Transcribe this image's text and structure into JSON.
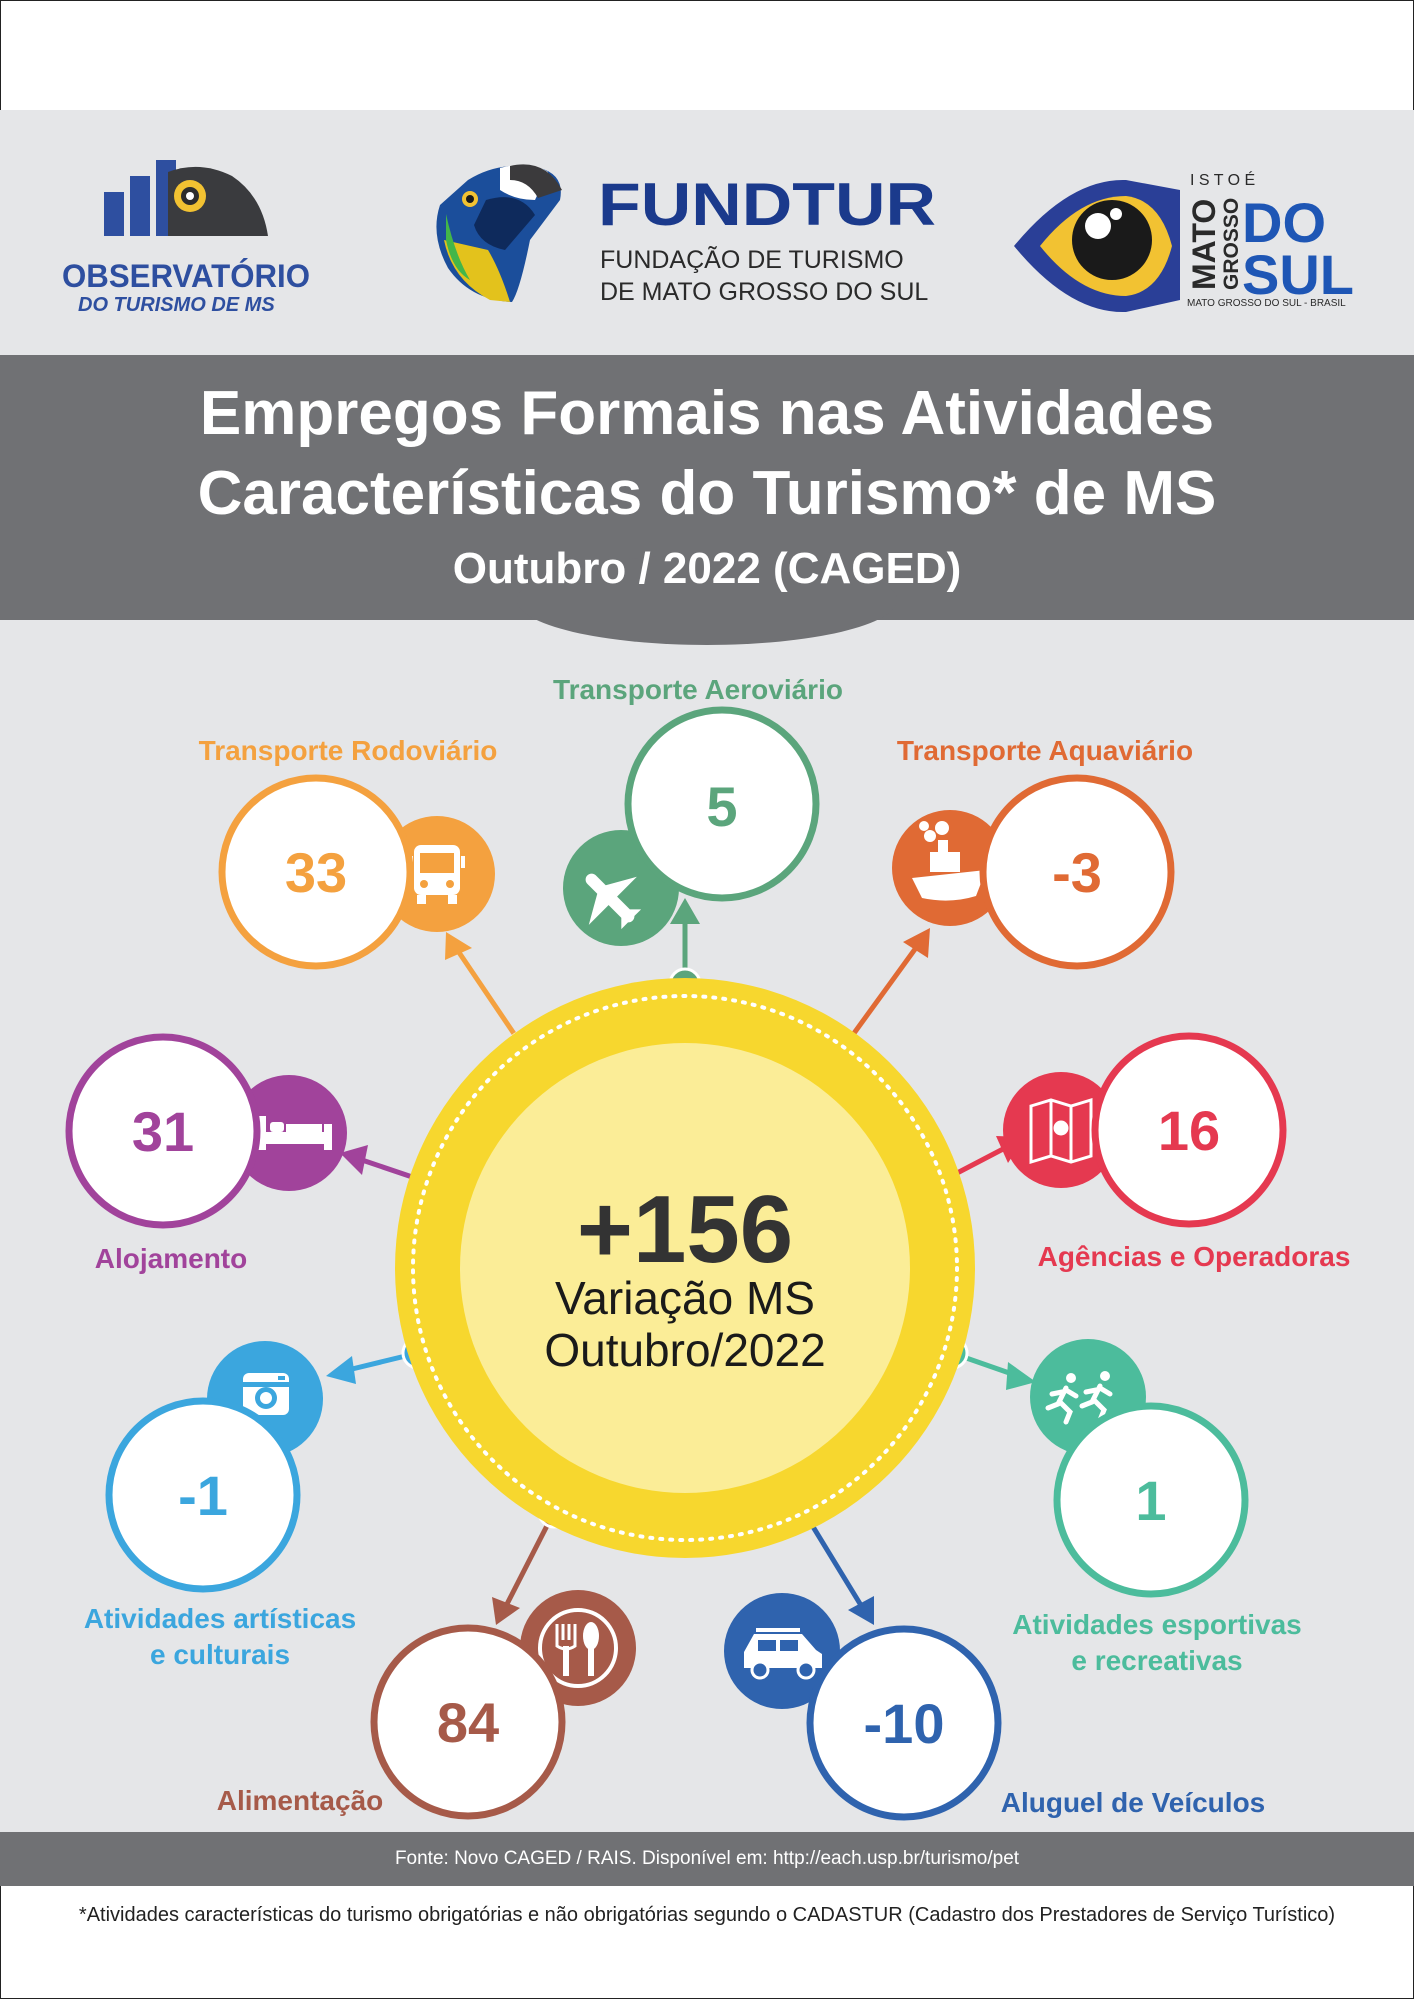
{
  "header": {
    "observatorio": {
      "name": "OBSERVATÓRIO",
      "sub": "DO TURISMO DE MS"
    },
    "fundtur": {
      "name": "FUNDTUR",
      "line1": "FUNDAÇÃO DE TURISMO",
      "line2": "DE MATO GROSSO DO SUL"
    },
    "ms": {
      "isto_e": "I S T O  É",
      "mato": "MATO",
      "grosso": "GROSSO",
      "do": "DO",
      "sul": "SUL",
      "sub": "MATO GROSSO DO SUL - BRASIL"
    }
  },
  "title": {
    "line1": "Empregos Formais nas Atividades",
    "line2": "Características do Turismo* de MS",
    "subtitle": "Outubro / 2022 (CAGED)"
  },
  "center": {
    "value": "+156",
    "label1": "Variação MS",
    "label2": "Outubro/2022"
  },
  "items": [
    {
      "key": "rodoviario",
      "label": "Transporte Rodoviário",
      "value": "33",
      "color": "#F4A13F",
      "icon": "bus-icon"
    },
    {
      "key": "aereo",
      "label": "Transporte Aeroviário",
      "value": "5",
      "color": "#5BA57C",
      "icon": "airplane-icon"
    },
    {
      "key": "aquaviario",
      "label": "Transporte Aquaviário",
      "value": "-3",
      "color": "#E06A34",
      "icon": "ship-icon"
    },
    {
      "key": "alojamento",
      "label": "Alojamento",
      "value": "31",
      "color": "#A1439B",
      "icon": "bed-icon"
    },
    {
      "key": "agencias",
      "label": "Agências e Operadoras",
      "value": "16",
      "color": "#E53950",
      "icon": "map-icon"
    },
    {
      "key": "artisticas",
      "label1": "Atividades artísticas",
      "label2": "e culturais",
      "value": "-1",
      "color": "#3BA6DE",
      "icon": "camera-icon"
    },
    {
      "key": "esportivas",
      "label1": "Atividades esportivas",
      "label2": "e recreativas",
      "value": "1",
      "color": "#4CBC9C",
      "icon": "runners-icon"
    },
    {
      "key": "alimentacao",
      "label": "Alimentação",
      "value": "84",
      "color": "#A65A49",
      "icon": "fork-knife-icon"
    },
    {
      "key": "veiculos",
      "label": "Aluguel de Veículos",
      "value": "-10",
      "color": "#2F63AE",
      "icon": "car-icon"
    }
  ],
  "footer": {
    "source": "Fonte: Novo CAGED / RAIS. Disponível em: http://each.usp.br/turismo/pet",
    "note": "*Atividades características do turismo obrigatórias e não obrigatórias segundo o CADASTUR (Cadastro dos Prestadores de Serviço Turístico)"
  }
}
